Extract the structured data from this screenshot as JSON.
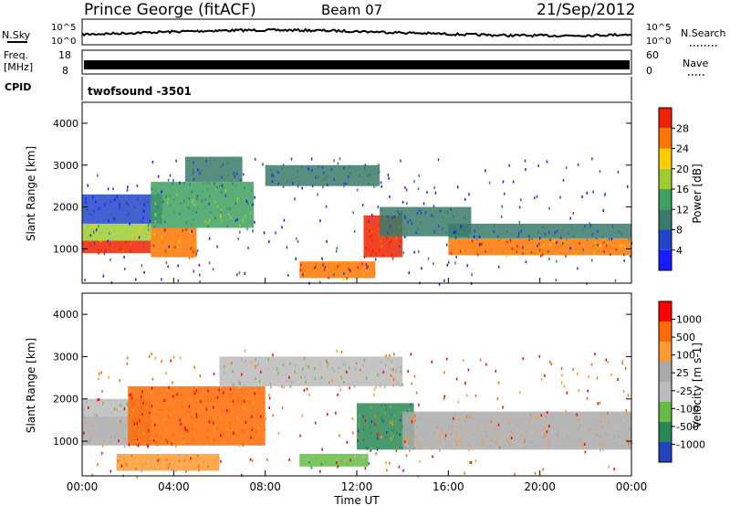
{
  "header": {
    "station": "Prince George (fitACF)",
    "beam": "Beam 07",
    "date": "21/Sep/2012"
  },
  "noise_panel": {
    "left_label": "N.Sky",
    "left_ticks": [
      "10^5",
      "10^0"
    ],
    "right_ticks": [
      "10^5",
      "10^0"
    ],
    "right_label": "N.Search"
  },
  "freq_panel": {
    "left_label_1": "Freq.",
    "left_label_2": "[MHz]",
    "left_ticks": [
      "18",
      "8"
    ],
    "right_ticks": [
      "60",
      "0"
    ],
    "right_label": "Nave"
  },
  "cpid_panel": {
    "label": "CPID",
    "program": "twofsound -3501"
  },
  "colors": {
    "power_scale": [
      "#1a1aff",
      "#2244cc",
      "#3a7a6a",
      "#3fa060",
      "#9fcc33",
      "#ffcc00",
      "#ff7700",
      "#ee2200"
    ],
    "velocity_scale": [
      "#ff0000",
      "#ff6a00",
      "#ff9a33",
      "#aaaaaa",
      "#bbbbbb",
      "#66bb44",
      "#2a8855",
      "#2244bb"
    ]
  },
  "chart_data": [
    {
      "type": "heatmap",
      "name": "power",
      "ylabel": "Slant Range [km]",
      "y_ticks": [
        "1000",
        "2000",
        "3000",
        "4000"
      ],
      "ylim": [
        180,
        4500
      ],
      "colorbar_label": "Power [dB]",
      "colorbar_ticks": [
        "4",
        "8",
        "12",
        "16",
        "20",
        "24",
        "28"
      ],
      "bands": [
        {
          "t0": 0.0,
          "t1": 3.0,
          "r0": 900,
          "r1": 1200,
          "level": 7
        },
        {
          "t0": 0.0,
          "t1": 3.0,
          "r0": 1200,
          "r1": 1600,
          "level": 4
        },
        {
          "t0": 0.0,
          "t1": 3.5,
          "r0": 1600,
          "r1": 2300,
          "level": 1
        },
        {
          "t0": 3.0,
          "t1": 5.0,
          "r0": 800,
          "r1": 1500,
          "level": 6
        },
        {
          "t0": 3.0,
          "t1": 7.5,
          "r0": 1500,
          "r1": 2600,
          "level": 3
        },
        {
          "t0": 4.5,
          "t1": 7.0,
          "r0": 2600,
          "r1": 3200,
          "level": 2
        },
        {
          "t0": 8.0,
          "t1": 13.0,
          "r0": 2500,
          "r1": 3000,
          "level": 2
        },
        {
          "t0": 9.5,
          "t1": 12.8,
          "r0": 300,
          "r1": 700,
          "level": 6
        },
        {
          "t0": 12.3,
          "t1": 14.0,
          "r0": 800,
          "r1": 1800,
          "level": 7
        },
        {
          "t0": 13.0,
          "t1": 17.0,
          "r0": 1300,
          "r1": 2000,
          "level": 2
        },
        {
          "t0": 16.0,
          "t1": 24.0,
          "r0": 850,
          "r1": 1250,
          "level": 6
        },
        {
          "t0": 16.0,
          "t1": 24.0,
          "r0": 1250,
          "r1": 1600,
          "level": 2
        }
      ]
    },
    {
      "type": "heatmap",
      "name": "velocity",
      "ylabel": "Slant Range [km]",
      "y_ticks": [
        "1000",
        "2000",
        "3000",
        "4000"
      ],
      "ylim": [
        180,
        4500
      ],
      "colorbar_label": "Velocity [m s-1]",
      "colorbar_ticks": [
        "1000",
        "500",
        "100",
        "25",
        "-25",
        "-100",
        "-500",
        "-1000"
      ],
      "bands": [
        {
          "t0": 0.0,
          "t1": 3.0,
          "r0": 900,
          "r1": 1600,
          "level": 3
        },
        {
          "t0": 0.0,
          "t1": 3.0,
          "r0": 1600,
          "r1": 2000,
          "level": 4
        },
        {
          "t0": 2.0,
          "t1": 8.0,
          "r0": 900,
          "r1": 2300,
          "level": 1
        },
        {
          "t0": 1.5,
          "t1": 6.0,
          "r0": 300,
          "r1": 700,
          "level": 2
        },
        {
          "t0": 6.0,
          "t1": 14.0,
          "r0": 2300,
          "r1": 3000,
          "level": 4
        },
        {
          "t0": 9.5,
          "t1": 12.5,
          "r0": 400,
          "r1": 700,
          "level": 5
        },
        {
          "t0": 12.0,
          "t1": 14.5,
          "r0": 800,
          "r1": 1900,
          "level": 6
        },
        {
          "t0": 14.0,
          "t1": 24.0,
          "r0": 800,
          "r1": 1700,
          "level": 3
        }
      ]
    }
  ],
  "x_axis": {
    "label": "Time UT",
    "ticks": [
      "00:00",
      "04:00",
      "08:00",
      "12:00",
      "16:00",
      "20:00",
      "00:00"
    ]
  }
}
